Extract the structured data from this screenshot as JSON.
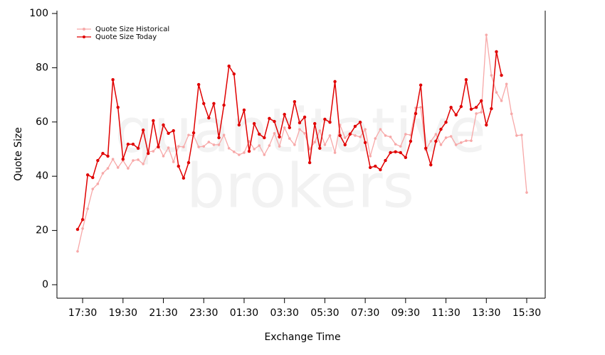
{
  "chart_data": {
    "type": "line",
    "xlabel": "Exchange Time",
    "ylabel": "Quote Size",
    "watermark": [
      "quantitative",
      "brokers"
    ],
    "categories": [
      null,
      "17:30",
      null,
      null,
      null,
      null,
      null,
      null,
      null,
      "19:30",
      null,
      null,
      null,
      null,
      null,
      null,
      null,
      "21:30",
      null,
      null,
      null,
      null,
      null,
      null,
      null,
      "23:30",
      null,
      null,
      null,
      null,
      null,
      null,
      null,
      "01:30",
      null,
      null,
      null,
      null,
      null,
      null,
      null,
      "03:30",
      null,
      null,
      null,
      null,
      null,
      null,
      null,
      "05:30",
      null,
      null,
      null,
      null,
      null,
      null,
      null,
      "07:30",
      null,
      null,
      null,
      null,
      null,
      null,
      null,
      "09:30",
      null,
      null,
      null,
      null,
      null,
      null,
      null,
      "11:30",
      null,
      null,
      null,
      null,
      null,
      null,
      null,
      "13:30",
      null,
      null,
      null,
      null,
      null,
      null,
      null,
      "15:30"
    ],
    "series": [
      {
        "name": "Quote Size Historical",
        "color": "#f7a8a8",
        "values": [
          12.3,
          20.7,
          28,
          35.3,
          37.2,
          41.1,
          42.9,
          46.3,
          43.2,
          45.8,
          42.9,
          45.8,
          46.1,
          44.5,
          49,
          49.2,
          51.3,
          47.4,
          50.5,
          45.3,
          51,
          50.8,
          55.2,
          55,
          50.8,
          51,
          52.6,
          51.6,
          51.6,
          55.2,
          50.3,
          49,
          47.9,
          48.7,
          52.9,
          50,
          51.3,
          47.9,
          51.3,
          55.8,
          51,
          57.9,
          53.9,
          51.6,
          57.3,
          55.8,
          50,
          52.6,
          56.8,
          51.6,
          55,
          48.7,
          58.9,
          54.2,
          55.8,
          55,
          54.5,
          57.3,
          47.4,
          53.9,
          57.3,
          55,
          54.5,
          51.8,
          51,
          55.5,
          55.2,
          65.2,
          65.4,
          49.7,
          52.9,
          55.5,
          51.6,
          54.2,
          54.7,
          51.6,
          52.4,
          53.1,
          53.1,
          63.1,
          63.6,
          92.1,
          77.2,
          70.9,
          67.8,
          74,
          63,
          55,
          55.2,
          34
        ]
      },
      {
        "name": "Quote Size Today",
        "color": "#e00000",
        "values": [
          20.4,
          24,
          40.5,
          39.5,
          45.8,
          48.4,
          47.4,
          75.6,
          65.4,
          46.3,
          51.8,
          51.8,
          50.3,
          57,
          48.4,
          60.5,
          50.8,
          58.9,
          55.8,
          56.8,
          43.7,
          39.3,
          45,
          56,
          73.8,
          66.8,
          61.5,
          66.8,
          54.2,
          66.2,
          80.6,
          77.7,
          58.9,
          64.4,
          49.2,
          59.4,
          55.5,
          54.2,
          61.3,
          60.2,
          54.5,
          62.8,
          57.9,
          67.5,
          59.7,
          61.8,
          45,
          59.4,
          50.3,
          61,
          59.9,
          74.9,
          55,
          51.6,
          55.5,
          58.4,
          59.9,
          52.4,
          43.2,
          43.7,
          42.4,
          45.8,
          48.7,
          49,
          48.7,
          46.9,
          52.9,
          63.1,
          73.6,
          50.3,
          44.2,
          52.9,
          57.3,
          59.9,
          65.4,
          62.6,
          65.7,
          75.6,
          64.7,
          65.4,
          67.8,
          58.9,
          64.9,
          85.9,
          77.2,
          null,
          null,
          null,
          null,
          null
        ]
      }
    ],
    "ylim": [
      0,
      100
    ],
    "yticks": [
      0,
      20,
      40,
      60,
      80,
      100
    ],
    "legend": "upper left"
  }
}
